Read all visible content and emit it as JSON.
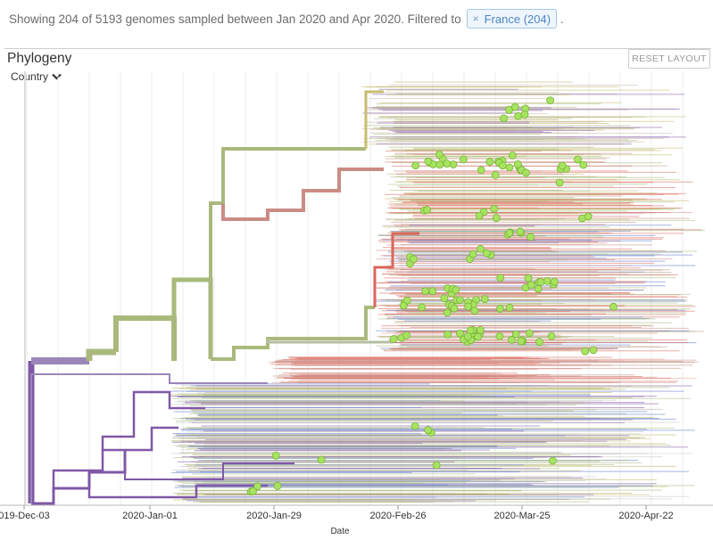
{
  "header": {
    "summary_text": "Showing 204 of 5193 genomes sampled between Jan 2020 and Apr 2020. Filtered to",
    "filter_badge": {
      "remove_symbol": "×",
      "label": "France (204)"
    },
    "trailing": "."
  },
  "panel": {
    "title": "Phylogeny",
    "reset_label": "RESET LAYOUT",
    "color_by_label": "Country"
  },
  "axis": {
    "ticks": [
      "019-Dec-03",
      "2020-Jan-01",
      "2020-Jan-29",
      "2020-Feb-26",
      "2020-Mar-25",
      "2020-Apr-22"
    ],
    "title": "Date"
  },
  "colors": {
    "tip_highlight": "#a6e35f",
    "clade_green": "#a9b97c",
    "clade_red": "#d9675b",
    "clade_rose": "#c98d85",
    "clade_purple": "#8058a6",
    "clade_blue": "#6078c8",
    "clade_olive": "#bfb86a"
  }
}
